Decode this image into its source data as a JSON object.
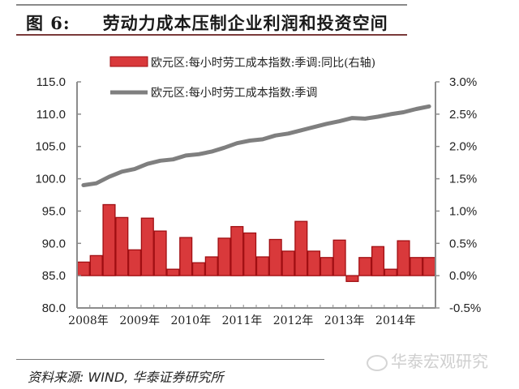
{
  "header": {
    "figure_label": "图 6:",
    "title": "劳动力成本压制企业利润和投资空间"
  },
  "footer": {
    "source": "资料来源: WIND, 华泰证券研究所",
    "watermark": "华泰宏观研究"
  },
  "colors": {
    "bar_fill": "#d9393b",
    "bar_stroke": "#a00e12",
    "line": "#7f7f7f",
    "axis": "#8c8c8c"
  },
  "chart_data": {
    "type": "bar+line",
    "title": "劳动力成本压制企业利润和投资空间",
    "x_tick_labels": [
      "2008年",
      "2009年",
      "2010年",
      "2011年",
      "2012年",
      "2013年",
      "2014年"
    ],
    "categories": [
      "2008Q1",
      "2008Q2",
      "2008Q3",
      "2008Q4",
      "2009Q1",
      "2009Q2",
      "2009Q3",
      "2009Q4",
      "2010Q1",
      "2010Q2",
      "2010Q3",
      "2010Q4",
      "2011Q1",
      "2011Q2",
      "2011Q3",
      "2011Q4",
      "2012Q1",
      "2012Q2",
      "2012Q3",
      "2012Q4",
      "2013Q1",
      "2013Q2",
      "2013Q3",
      "2013Q4",
      "2014Q1",
      "2014Q2",
      "2014Q3",
      "2014Q4"
    ],
    "left_axis": {
      "label": "",
      "ylim": [
        80.0,
        115.0
      ],
      "ticks": [
        "80.0",
        "85.0",
        "90.0",
        "95.0",
        "100.0",
        "105.0",
        "110.0",
        "115.0"
      ]
    },
    "right_axis": {
      "label": "",
      "ylim": [
        -0.5,
        3.0
      ],
      "ticks": [
        "-0.5%",
        "0.0%",
        "0.5%",
        "1.0%",
        "1.5%",
        "2.0%",
        "2.5%",
        "3.0%"
      ]
    },
    "series": [
      {
        "name": "欧元区:每小时劳工成本指数:季调:同比(右轴)",
        "type": "bar",
        "axis": "right",
        "unit": "%",
        "values": [
          0.21,
          0.31,
          1.1,
          0.9,
          0.4,
          0.89,
          0.69,
          0.1,
          0.59,
          0.2,
          0.29,
          0.58,
          0.76,
          0.66,
          0.29,
          0.56,
          0.38,
          0.84,
          0.38,
          0.28,
          0.55,
          -0.09,
          0.28,
          0.45,
          0.1,
          0.54,
          0.28,
          0.28
        ]
      },
      {
        "name": "欧元区:每小时劳工成本指数:季调",
        "type": "line",
        "axis": "left",
        "values": [
          99.0,
          99.3,
          100.3,
          101.1,
          101.5,
          102.3,
          102.8,
          103.0,
          103.6,
          103.8,
          104.2,
          104.8,
          105.5,
          105.9,
          106.1,
          106.7,
          107.0,
          107.5,
          108.0,
          108.5,
          108.9,
          109.4,
          109.3,
          109.6,
          110.0,
          110.3,
          110.8,
          111.2
        ]
      }
    ],
    "legend": {
      "position": "top-center",
      "entries": [
        "欧元区:每小时劳工成本指数:季调:同比(右轴)",
        "欧元区:每小时劳工成本指数:季调"
      ]
    },
    "grid": false
  }
}
